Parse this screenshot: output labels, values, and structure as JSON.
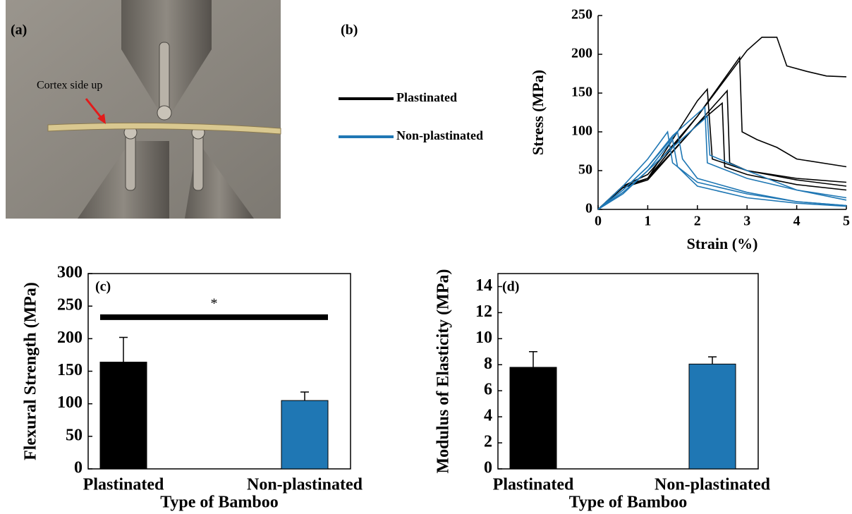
{
  "photo": {
    "label": "(a)",
    "annotation": "Cortex side up"
  },
  "chart_data": [
    {
      "type": "line",
      "panel_label": "(b)",
      "x_label": "Strain (%)",
      "y_label": "Stress (MPa)",
      "xlim": [
        0,
        5
      ],
      "ylim": [
        0,
        250
      ],
      "xticks": [
        0,
        1,
        2,
        3,
        4,
        5
      ],
      "yticks": [
        0,
        50,
        100,
        150,
        200,
        250
      ],
      "series": [
        {
          "name": "Plastinated",
          "color": "#000000",
          "curves": [
            {
              "x": [
                0,
                0.5,
                1,
                2,
                3,
                3.3,
                3.6,
                3.8,
                4.2,
                4.6,
                5
              ],
              "values": [
                0,
                30,
                45,
                120,
                205,
                222,
                222,
                185,
                178,
                172,
                171
              ]
            },
            {
              "x": [
                0,
                0.5,
                1,
                2,
                2.85,
                2.9,
                3.2,
                3.6,
                4,
                5
              ],
              "values": [
                0,
                30,
                40,
                120,
                196,
                100,
                90,
                80,
                65,
                55
              ]
            },
            {
              "x": [
                0,
                0.5,
                1,
                2,
                2.2,
                2.3,
                3,
                4,
                5
              ],
              "values": [
                0,
                30,
                40,
                140,
                155,
                65,
                50,
                40,
                35
              ]
            },
            {
              "x": [
                0,
                0.5,
                1,
                2,
                2.6,
                2.65,
                3,
                4,
                5
              ],
              "values": [
                0,
                28,
                40,
                110,
                153,
                60,
                50,
                38,
                30
              ]
            },
            {
              "x": [
                0,
                0.5,
                1,
                2,
                2.5,
                2.55,
                3,
                4,
                5
              ],
              "values": [
                0,
                28,
                38,
                110,
                137,
                55,
                45,
                32,
                25
              ]
            }
          ]
        },
        {
          "name": "Non-plastinated",
          "color": "#1f77b4",
          "curves": [
            {
              "x": [
                0,
                0.5,
                1,
                1.5,
                2.15,
                2.2,
                3,
                4,
                5
              ],
              "values": [
                0,
                25,
                55,
                95,
                132,
                60,
                40,
                25,
                15
              ]
            },
            {
              "x": [
                0,
                0.5,
                1,
                1.5,
                2.2,
                2.25,
                3,
                4,
                5
              ],
              "values": [
                0,
                22,
                50,
                80,
                120,
                70,
                50,
                25,
                12
              ]
            },
            {
              "x": [
                0,
                0.5,
                1,
                1.4,
                1.5,
                2,
                3,
                4,
                5
              ],
              "values": [
                0,
                30,
                65,
                100,
                60,
                35,
                20,
                10,
                5
              ]
            },
            {
              "x": [
                0,
                0.5,
                1,
                1.6,
                1.7,
                2,
                3,
                4,
                5
              ],
              "values": [
                0,
                25,
                55,
                100,
                65,
                40,
                22,
                10,
                5
              ]
            },
            {
              "x": [
                0,
                0.5,
                1,
                1.5,
                1.6,
                2,
                3,
                4,
                5
              ],
              "values": [
                0,
                20,
                50,
                90,
                55,
                30,
                15,
                8,
                4
              ]
            }
          ]
        }
      ]
    },
    {
      "type": "bar",
      "panel_label": "(c)",
      "x_label": "Type of Bamboo",
      "y_label": "Flexural Strength (MPa)",
      "categories": [
        "Plastinated",
        "Non-plastinated"
      ],
      "values": [
        164,
        105
      ],
      "errors": [
        38,
        13
      ],
      "colors": [
        "#000000",
        "#1f77b4"
      ],
      "ylim": [
        0,
        300
      ],
      "yticks": [
        0,
        50,
        100,
        150,
        200,
        250,
        300
      ],
      "significance": {
        "label": "*",
        "value": 233
      }
    },
    {
      "type": "bar",
      "panel_label": "(d)",
      "x_label": "Type of Bamboo",
      "y_label": "Modulus of Elasticity (MPa)",
      "categories": [
        "Plastinated",
        "Non-plastinated"
      ],
      "values": [
        7.8,
        8.05
      ],
      "errors": [
        1.2,
        0.55
      ],
      "colors": [
        "#000000",
        "#1f77b4"
      ],
      "ylim": [
        0,
        15
      ],
      "yticks": [
        0,
        2,
        4,
        6,
        8,
        10,
        12,
        14
      ]
    }
  ]
}
